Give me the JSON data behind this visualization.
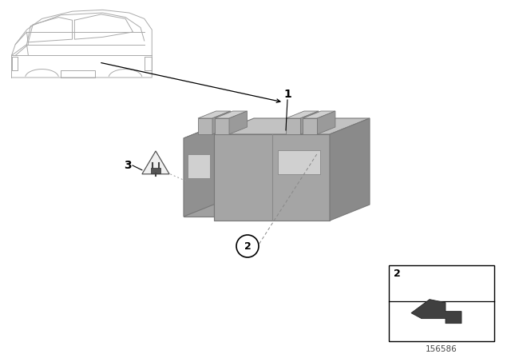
{
  "bg_color": "#ffffff",
  "diagram_number": "156586",
  "part_color_front": "#a8a8a8",
  "part_color_top": "#c5c5c5",
  "part_color_right": "#8a8a8a",
  "part_color_left_ext": "#b0b0b0",
  "pin_front": "#b0b0b0",
  "pin_top": "#d0d0d0",
  "pin_right": "#9a9a9a",
  "edge_color": "#777777",
  "black": "#000000",
  "white": "#ffffff",
  "line_color": "#555555"
}
